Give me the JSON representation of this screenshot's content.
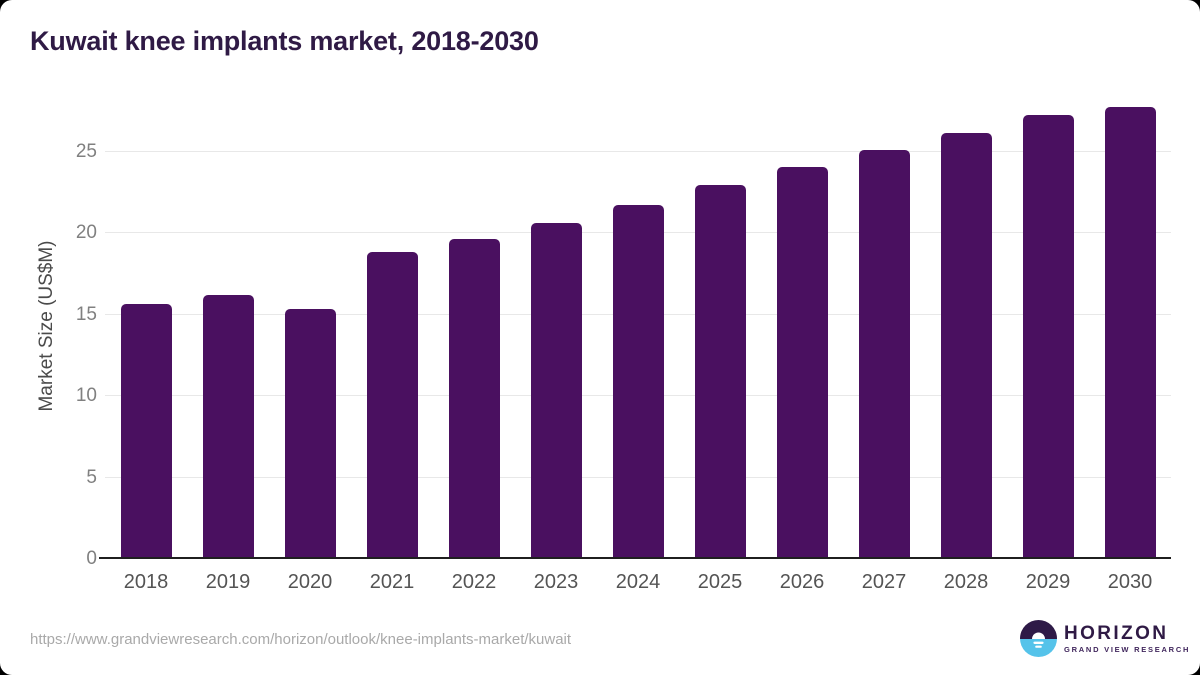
{
  "title": "Kuwait knee implants market, 2018-2030",
  "chart_data": {
    "type": "bar",
    "title": "Kuwait knee implants market, 2018-2030",
    "categories": [
      "2018",
      "2019",
      "2020",
      "2021",
      "2022",
      "2023",
      "2024",
      "2025",
      "2026",
      "2027",
      "2028",
      "2029",
      "2030"
    ],
    "values": [
      15.5,
      16.1,
      15.2,
      18.7,
      19.5,
      20.5,
      21.6,
      22.8,
      23.9,
      25.0,
      26.0,
      27.1,
      27.6
    ],
    "xlabel": "",
    "ylabel": "Market Size (US$M)",
    "ylim": [
      0,
      28.5
    ],
    "yticks": [
      0,
      5,
      10,
      15,
      20,
      25
    ],
    "grid": true,
    "legend": false,
    "bar_color": "#4a1060"
  },
  "footer": {
    "source_url": "https://www.grandviewresearch.com/horizon/outlook/knee-implants-market/kuwait",
    "logo_title": "HORIZON",
    "logo_subtitle": "GRAND VIEW RESEARCH"
  },
  "colors": {
    "bar": "#4a1060",
    "title_text": "#2f1a45",
    "gridline": "#e8e8e8",
    "axis_line": "#1f1f1f",
    "y_tick_text": "#808080",
    "x_tick_text": "#545454",
    "url_text": "#a9a9a9",
    "logo_purple": "#2e1a47",
    "logo_blue": "#55c3ea",
    "logo_sun": "#ffffff"
  }
}
